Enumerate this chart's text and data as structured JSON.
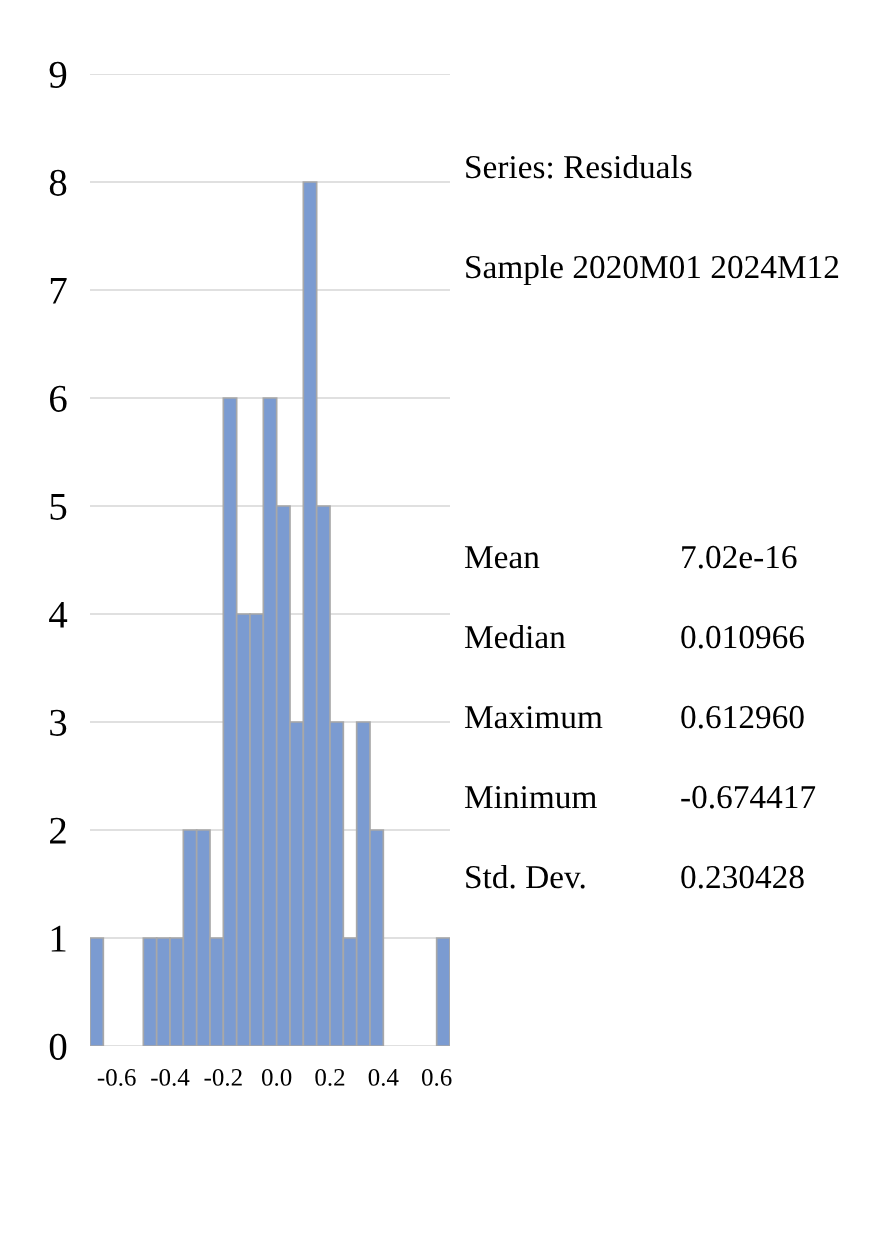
{
  "chart_data": {
    "type": "histogram",
    "bins": [
      -0.7,
      -0.65,
      -0.6,
      -0.55,
      -0.5,
      -0.45,
      -0.4,
      -0.35,
      -0.3,
      -0.25,
      -0.2,
      -0.15,
      -0.1,
      -0.05,
      0.0,
      0.05,
      0.1,
      0.15,
      0.2,
      0.25,
      0.3,
      0.35,
      0.4,
      0.45,
      0.5,
      0.55,
      0.6,
      0.65
    ],
    "values": [
      1,
      0,
      0,
      0,
      1,
      1,
      1,
      2,
      2,
      1,
      6,
      4,
      4,
      6,
      5,
      3,
      8,
      5,
      3,
      1,
      3,
      2,
      0,
      0,
      0,
      0,
      1
    ],
    "color": "#7b9bd1",
    "xlim": [
      -0.7,
      0.65
    ],
    "xticks": [
      -0.6,
      -0.4,
      -0.2,
      {
        "value": 0,
        "label": "0.0"
      },
      0.2,
      0.4,
      0.6
    ],
    "ylim": [
      0,
      9
    ],
    "yticks": [
      0,
      1,
      2,
      3,
      4,
      5,
      6,
      7,
      8,
      9
    ],
    "grid": "y",
    "annotations": [
      "Series: Residuals",
      "Sample 2020M01 2024M12",
      "Mean",
      "7.02e-16",
      "Median",
      "0.010966",
      "Maximum",
      "0.612960",
      "Minimum",
      "-0.674417",
      "Std. Dev.",
      "0.230428"
    ]
  }
}
